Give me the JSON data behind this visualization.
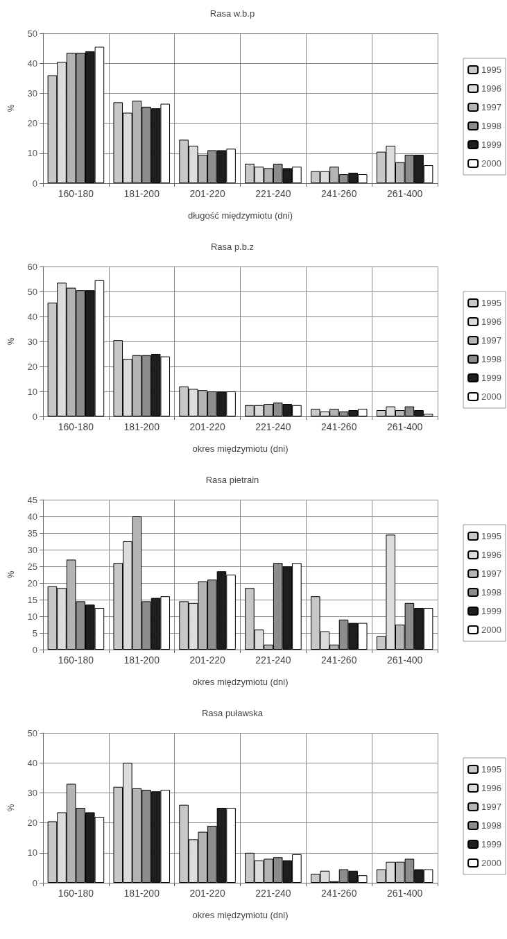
{
  "chart_data": [
    {
      "type": "bar",
      "title": "Rasa w.b.p",
      "xlabel": "długość międzymiotu (dni)",
      "ylabel": "%",
      "categories": [
        "160-180",
        "181-200",
        "201-220",
        "221-240",
        "241-260",
        "261-400"
      ],
      "ylim": [
        0,
        50
      ],
      "yticks": [
        0,
        10,
        20,
        30,
        40,
        50
      ],
      "grid": true,
      "legend": "right",
      "series": [
        {
          "name": "1995",
          "color": "#c8c8c8",
          "values": [
            36,
            27,
            14.5,
            6.5,
            4,
            10.5
          ]
        },
        {
          "name": "1996",
          "color": "#dcdcdc",
          "values": [
            40.5,
            23.5,
            12.5,
            5.5,
            4,
            12.5
          ]
        },
        {
          "name": "1997",
          "color": "#b4b4b4",
          "values": [
            43.5,
            27.5,
            9.5,
            5,
            5.5,
            7
          ]
        },
        {
          "name": "1998",
          "color": "#8c8c8c",
          "values": [
            43.5,
            25.5,
            11,
            6.5,
            3,
            9.5
          ]
        },
        {
          "name": "1999",
          "color": "#1e1e1e",
          "values": [
            44,
            25,
            11,
            5,
            3.5,
            9.5
          ]
        },
        {
          "name": "2000",
          "color": "#ffffff",
          "values": [
            45.5,
            26.5,
            11.5,
            5.5,
            3,
            6
          ]
        }
      ]
    },
    {
      "type": "bar",
      "title": "Rasa p.b.z",
      "xlabel": "okres międzymiotu (dni)",
      "ylabel": "%",
      "categories": [
        "160-180",
        "181-200",
        "201-220",
        "221-240",
        "241-260",
        "261-400"
      ],
      "ylim": [
        0,
        60
      ],
      "yticks": [
        0,
        10,
        20,
        30,
        40,
        50,
        60
      ],
      "grid": true,
      "legend": "right",
      "series": [
        {
          "name": "1995",
          "color": "#c8c8c8",
          "values": [
            45.5,
            30.5,
            12,
            4.5,
            3,
            2.5
          ]
        },
        {
          "name": "1996",
          "color": "#dcdcdc",
          "values": [
            53.5,
            23,
            11,
            4.5,
            2,
            4
          ]
        },
        {
          "name": "1997",
          "color": "#b4b4b4",
          "values": [
            51.5,
            24.5,
            10.5,
            5,
            3,
            2.5
          ]
        },
        {
          "name": "1998",
          "color": "#8c8c8c",
          "values": [
            50.5,
            24.5,
            10,
            5.5,
            2,
            4
          ]
        },
        {
          "name": "1999",
          "color": "#1e1e1e",
          "values": [
            50.5,
            25,
            10,
            5,
            2.5,
            2.5
          ]
        },
        {
          "name": "2000",
          "color": "#ffffff",
          "values": [
            54.5,
            24,
            10,
            4.5,
            3,
            1
          ]
        }
      ]
    },
    {
      "type": "bar",
      "title": "Rasa pietrain",
      "xlabel": "okres międzymiotu (dni)",
      "ylabel": "%",
      "categories": [
        "160-180",
        "181-200",
        "201-220",
        "221-240",
        "241-260",
        "261-400"
      ],
      "ylim": [
        0,
        45
      ],
      "yticks": [
        0,
        5,
        10,
        15,
        20,
        25,
        30,
        35,
        40,
        45
      ],
      "grid": true,
      "legend": "right",
      "series": [
        {
          "name": "1995",
          "color": "#c8c8c8",
          "values": [
            19,
            26,
            14.5,
            18.5,
            16,
            4
          ]
        },
        {
          "name": "1996",
          "color": "#dcdcdc",
          "values": [
            18.5,
            32.5,
            14,
            6,
            5.5,
            34.5
          ]
        },
        {
          "name": "1997",
          "color": "#b4b4b4",
          "values": [
            27,
            40,
            20.5,
            1.5,
            1.5,
            7.5
          ]
        },
        {
          "name": "1998",
          "color": "#8c8c8c",
          "values": [
            14.5,
            14.5,
            21,
            26,
            9,
            14
          ]
        },
        {
          "name": "1999",
          "color": "#1e1e1e",
          "values": [
            13.5,
            15.5,
            23.5,
            25,
            8,
            12.5
          ]
        },
        {
          "name": "2000",
          "color": "#ffffff",
          "values": [
            12.5,
            16,
            22.5,
            26,
            8,
            12.5
          ]
        }
      ]
    },
    {
      "type": "bar",
      "title": "Rasa puławska",
      "xlabel": "okres międzymiotu (dni)",
      "ylabel": "%",
      "categories": [
        "160-180",
        "181-200",
        "201-220",
        "221-240",
        "241-260",
        "261-400"
      ],
      "ylim": [
        0,
        50
      ],
      "yticks": [
        0,
        10,
        20,
        30,
        40,
        50
      ],
      "grid": true,
      "legend": "right",
      "series": [
        {
          "name": "1995",
          "color": "#c8c8c8",
          "values": [
            20.5,
            32,
            26,
            10,
            3,
            4.5
          ]
        },
        {
          "name": "1996",
          "color": "#dcdcdc",
          "values": [
            23.5,
            40,
            14.5,
            7.5,
            4,
            7
          ]
        },
        {
          "name": "1997",
          "color": "#b4b4b4",
          "values": [
            33,
            31.5,
            17,
            8,
            0.5,
            7
          ]
        },
        {
          "name": "1998",
          "color": "#8c8c8c",
          "values": [
            25,
            31,
            19,
            8.5,
            4.5,
            8
          ]
        },
        {
          "name": "1999",
          "color": "#1e1e1e",
          "values": [
            23.5,
            30.5,
            25,
            7.5,
            4,
            4.5
          ]
        },
        {
          "name": "2000",
          "color": "#ffffff",
          "values": [
            22,
            31,
            25,
            9.5,
            2.5,
            4.5
          ]
        }
      ]
    }
  ]
}
